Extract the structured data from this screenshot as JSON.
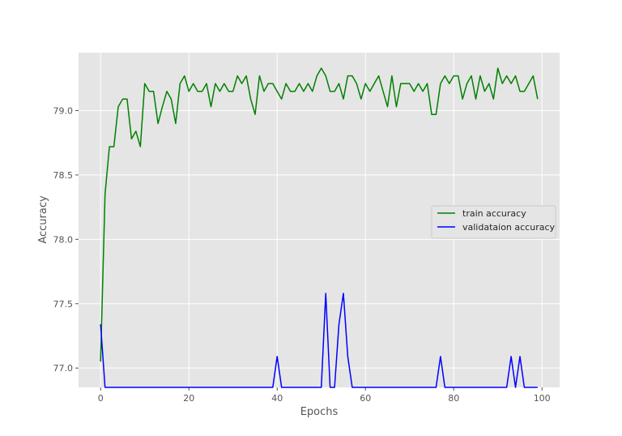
{
  "chart_data": {
    "type": "line",
    "title": "",
    "xlabel": "Epochs",
    "ylabel": "Accuracy",
    "xlim": [
      -5,
      104
    ],
    "ylim": [
      76.85,
      79.45
    ],
    "xticks": [
      0,
      20,
      40,
      60,
      80,
      100
    ],
    "yticks": [
      77.0,
      77.5,
      78.0,
      78.5,
      79.0
    ],
    "xtick_labels": [
      "0",
      "20",
      "40",
      "60",
      "80",
      "100"
    ],
    "ytick_labels": [
      "77.0",
      "77.5",
      "78.0",
      "78.5",
      "79.0"
    ],
    "grid": true,
    "legend_position": "center-right",
    "series": [
      {
        "name": "train accuracy",
        "color": "#008000",
        "x": [
          0,
          1,
          2,
          3,
          4,
          5,
          6,
          7,
          8,
          9,
          10,
          11,
          12,
          13,
          14,
          15,
          16,
          17,
          18,
          19,
          20,
          21,
          22,
          23,
          24,
          25,
          26,
          27,
          28,
          29,
          30,
          31,
          32,
          33,
          34,
          35,
          36,
          37,
          38,
          39,
          40,
          41,
          42,
          43,
          44,
          45,
          46,
          47,
          48,
          49,
          50,
          51,
          52,
          53,
          54,
          55,
          56,
          57,
          58,
          59,
          60,
          61,
          62,
          63,
          64,
          65,
          66,
          67,
          68,
          69,
          70,
          71,
          72,
          73,
          74,
          75,
          76,
          77,
          78,
          79,
          80,
          81,
          82,
          83,
          84,
          85,
          86,
          87,
          88,
          89,
          90,
          91,
          92,
          93,
          94,
          95,
          96,
          97,
          98,
          99
        ],
        "y": [
          77.05,
          78.35,
          78.72,
          78.72,
          79.03,
          79.09,
          79.09,
          78.78,
          78.84,
          78.72,
          79.21,
          79.15,
          79.15,
          78.9,
          79.03,
          79.15,
          79.09,
          78.9,
          79.21,
          79.27,
          79.15,
          79.21,
          79.15,
          79.15,
          79.21,
          79.03,
          79.21,
          79.15,
          79.21,
          79.15,
          79.15,
          79.27,
          79.21,
          79.27,
          79.09,
          78.97,
          79.27,
          79.15,
          79.21,
          79.21,
          79.15,
          79.09,
          79.21,
          79.15,
          79.15,
          79.21,
          79.15,
          79.21,
          79.15,
          79.27,
          79.33,
          79.27,
          79.15,
          79.15,
          79.21,
          79.09,
          79.27,
          79.27,
          79.21,
          79.09,
          79.21,
          79.15,
          79.21,
          79.27,
          79.15,
          79.03,
          79.27,
          79.03,
          79.21,
          79.21,
          79.21,
          79.15,
          79.21,
          79.15,
          79.21,
          78.97,
          78.97,
          79.21,
          79.27,
          79.21,
          79.27,
          79.27,
          79.09,
          79.21,
          79.27,
          79.09,
          79.27,
          79.15,
          79.21,
          79.09,
          79.33,
          79.21,
          79.27,
          79.21,
          79.27,
          79.15,
          79.15,
          79.21,
          79.27,
          79.09
        ]
      },
      {
        "name": "validataion accuracy",
        "color": "#0000ff",
        "x": [
          0,
          1,
          2,
          3,
          4,
          5,
          6,
          7,
          8,
          9,
          10,
          11,
          12,
          13,
          14,
          15,
          16,
          17,
          18,
          19,
          20,
          21,
          22,
          23,
          24,
          25,
          26,
          27,
          28,
          29,
          30,
          31,
          32,
          33,
          34,
          35,
          36,
          37,
          38,
          39,
          40,
          41,
          42,
          43,
          44,
          45,
          46,
          47,
          48,
          49,
          50,
          51,
          52,
          53,
          54,
          55,
          56,
          57,
          58,
          59,
          60,
          61,
          62,
          63,
          64,
          65,
          66,
          67,
          68,
          69,
          70,
          71,
          72,
          73,
          74,
          75,
          76,
          77,
          78,
          79,
          80,
          81,
          82,
          83,
          84,
          85,
          86,
          87,
          88,
          89,
          90,
          91,
          92,
          93,
          94,
          95,
          96,
          97,
          98,
          99
        ],
        "y": [
          77.34,
          76.85,
          76.85,
          76.85,
          76.85,
          76.85,
          76.85,
          76.85,
          76.85,
          76.85,
          76.85,
          76.85,
          76.85,
          76.85,
          76.85,
          76.85,
          76.85,
          76.85,
          76.85,
          76.85,
          76.85,
          76.85,
          76.85,
          76.85,
          76.85,
          76.85,
          76.85,
          76.85,
          76.85,
          76.85,
          76.85,
          76.85,
          76.85,
          76.85,
          76.85,
          76.85,
          76.85,
          76.85,
          76.85,
          76.85,
          77.09,
          76.85,
          76.85,
          76.85,
          76.85,
          76.85,
          76.85,
          76.85,
          76.85,
          76.85,
          76.85,
          77.58,
          76.85,
          76.85,
          77.34,
          77.58,
          77.09,
          76.85,
          76.85,
          76.85,
          76.85,
          76.85,
          76.85,
          76.85,
          76.85,
          76.85,
          76.85,
          76.85,
          76.85,
          76.85,
          76.85,
          76.85,
          76.85,
          76.85,
          76.85,
          76.85,
          76.85,
          77.09,
          76.85,
          76.85,
          76.85,
          76.85,
          76.85,
          76.85,
          76.85,
          76.85,
          76.85,
          76.85,
          76.85,
          76.85,
          76.85,
          76.85,
          76.85,
          77.09,
          76.85,
          77.09,
          76.85,
          76.85,
          76.85,
          76.85
        ]
      }
    ]
  }
}
